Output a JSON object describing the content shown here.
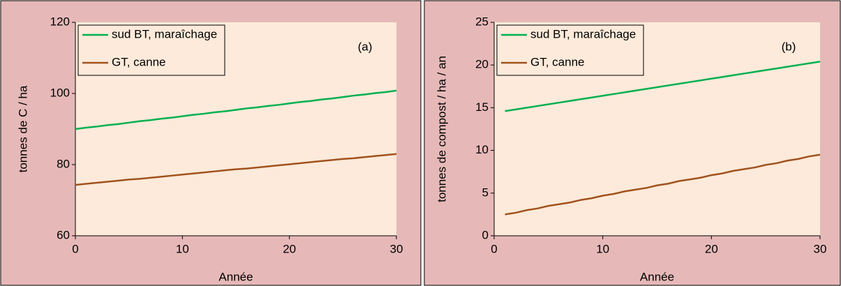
{
  "chart_data": [
    {
      "type": "line",
      "annotation": "(a)",
      "xlabel": "Année",
      "ylabel": "tonnes de C / ha",
      "xlim": [
        0,
        30
      ],
      "xticks": [
        0,
        10,
        20,
        30
      ],
      "ylim": [
        60,
        120
      ],
      "yticks": [
        60,
        80,
        100,
        120
      ],
      "legend": "top-left",
      "x": [
        0,
        1,
        2,
        3,
        4,
        5,
        6,
        7,
        8,
        9,
        10,
        11,
        12,
        13,
        14,
        15,
        16,
        17,
        18,
        19,
        20,
        21,
        22,
        23,
        24,
        25,
        26,
        27,
        28,
        29,
        30
      ],
      "series": [
        {
          "name": "sud BT, maraîchage",
          "color": "#00b050",
          "values": [
            90.0,
            90.4,
            90.7,
            91.1,
            91.4,
            91.8,
            92.2,
            92.5,
            92.9,
            93.2,
            93.6,
            94.0,
            94.3,
            94.7,
            95.0,
            95.4,
            95.8,
            96.1,
            96.5,
            96.8,
            97.2,
            97.6,
            97.9,
            98.3,
            98.6,
            99.0,
            99.4,
            99.7,
            100.1,
            100.4,
            100.8
          ]
        },
        {
          "name": "GT, canne",
          "color": "#a0521e",
          "values": [
            74.3,
            74.6,
            74.9,
            75.2,
            75.5,
            75.8,
            76.0,
            76.3,
            76.6,
            76.9,
            77.2,
            77.5,
            77.8,
            78.1,
            78.4,
            78.7,
            78.9,
            79.2,
            79.5,
            79.8,
            80.1,
            80.4,
            80.7,
            81.0,
            81.3,
            81.6,
            81.8,
            82.1,
            82.4,
            82.7,
            83.0
          ]
        }
      ]
    },
    {
      "type": "line",
      "annotation": "(b)",
      "xlabel": "Année",
      "ylabel": "tonnes de compost / ha / an",
      "xlim": [
        0,
        30
      ],
      "xticks": [
        0,
        10,
        20,
        30
      ],
      "ylim": [
        0,
        25
      ],
      "yticks": [
        0,
        5,
        10,
        15,
        20,
        25
      ],
      "legend": "top-left",
      "x": [
        1,
        2,
        3,
        4,
        5,
        6,
        7,
        8,
        9,
        10,
        11,
        12,
        13,
        14,
        15,
        16,
        17,
        18,
        19,
        20,
        21,
        22,
        23,
        24,
        25,
        26,
        27,
        28,
        29,
        30
      ],
      "series": [
        {
          "name": "sud BT, maraîchage",
          "color": "#00b050",
          "values": [
            14.6,
            14.8,
            15.0,
            15.2,
            15.4,
            15.6,
            15.8,
            16.0,
            16.2,
            16.4,
            16.6,
            16.8,
            17.0,
            17.2,
            17.4,
            17.6,
            17.8,
            18.0,
            18.2,
            18.4,
            18.6,
            18.8,
            19.0,
            19.2,
            19.4,
            19.6,
            19.8,
            20.0,
            20.2,
            20.4
          ]
        },
        {
          "name": "GT, canne",
          "color": "#a0521e",
          "values": [
            2.5,
            2.7,
            3.0,
            3.2,
            3.5,
            3.7,
            3.9,
            4.2,
            4.4,
            4.7,
            4.9,
            5.2,
            5.4,
            5.6,
            5.9,
            6.1,
            6.4,
            6.6,
            6.8,
            7.1,
            7.3,
            7.6,
            7.8,
            8.0,
            8.3,
            8.5,
            8.8,
            9.0,
            9.3,
            9.5
          ]
        }
      ]
    }
  ]
}
